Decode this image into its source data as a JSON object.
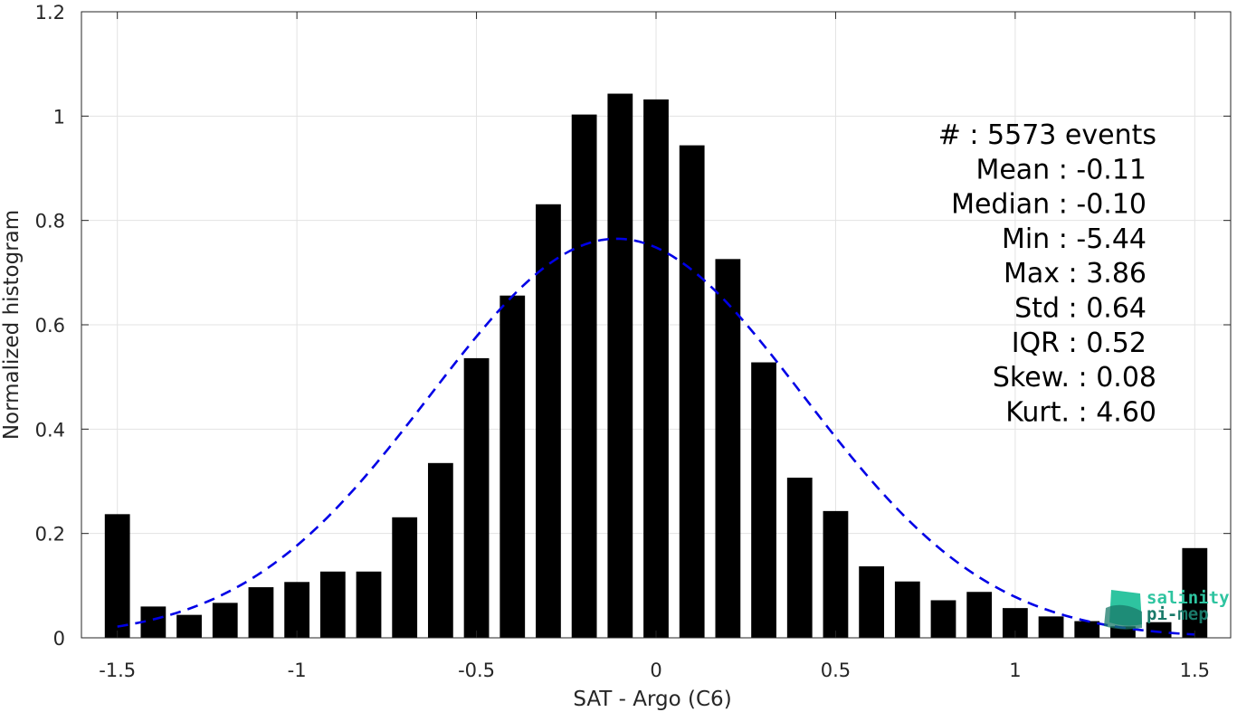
{
  "chart_data": {
    "type": "bar",
    "xlabel": "SAT - Argo (C6)",
    "ylabel": "Normalized histogram",
    "xlim": [
      -1.6,
      1.6
    ],
    "ylim": [
      0,
      1.2
    ],
    "grid": true,
    "x_ticks": [
      -1.5,
      -1,
      -0.5,
      0,
      0.5,
      1,
      1.5
    ],
    "x_tick_labels": [
      "-1.5",
      "-1",
      "-0.5",
      "0",
      "0.5",
      "1",
      "1.5"
    ],
    "y_ticks": [
      0,
      0.2,
      0.4,
      0.6,
      0.8,
      1,
      1.2
    ],
    "y_tick_labels": [
      "0",
      "0.2",
      "0.4",
      "0.6",
      "0.8",
      "1",
      "1.2"
    ],
    "bar_width": 0.07,
    "bar_color": "#000000",
    "bars": {
      "x": [
        -1.5,
        -1.4,
        -1.3,
        -1.2,
        -1.1,
        -1.0,
        -0.9,
        -0.8,
        -0.7,
        -0.6,
        -0.5,
        -0.4,
        -0.3,
        -0.2,
        -0.1,
        0.0,
        0.1,
        0.2,
        0.3,
        0.4,
        0.5,
        0.6,
        0.7,
        0.8,
        0.9,
        1.0,
        1.1,
        1.2,
        1.3,
        1.4,
        1.5
      ],
      "values": [
        0.237,
        0.06,
        0.044,
        0.067,
        0.097,
        0.107,
        0.127,
        0.127,
        0.231,
        0.335,
        0.536,
        0.656,
        0.831,
        1.003,
        1.043,
        1.032,
        0.944,
        0.726,
        0.528,
        0.307,
        0.243,
        0.137,
        0.108,
        0.072,
        0.088,
        0.057,
        0.041,
        0.032,
        0.022,
        0.03,
        0.172
      ]
    },
    "fit": {
      "type": "gaussian",
      "mean": -0.11,
      "std": 0.52,
      "peak": 0.765,
      "x_range": [
        -1.5,
        1.5
      ],
      "color": "#0000e6",
      "style": "dashed"
    }
  },
  "stats": [
    {
      "label": "#  ",
      "value": ": 5573 events"
    },
    {
      "label": "Mean ",
      "value": ": -0.11"
    },
    {
      "label": "Median ",
      "value": ": -0.10"
    },
    {
      "label": "Min ",
      "value": ": -5.44"
    },
    {
      "label": "Max ",
      "value": ": 3.86"
    },
    {
      "label": "Std ",
      "value": ": 0.64"
    },
    {
      "label": "IQR ",
      "value": ": 0.52"
    },
    {
      "label": "Skew. ",
      "value": ": 0.08"
    },
    {
      "label": "Kurt. ",
      "value": ": 4.60"
    }
  ],
  "logo": {
    "line1": "salinity",
    "line2": "pi-mep",
    "color_light": "#2ec4a0",
    "color_dark": "#1a7a6a"
  }
}
